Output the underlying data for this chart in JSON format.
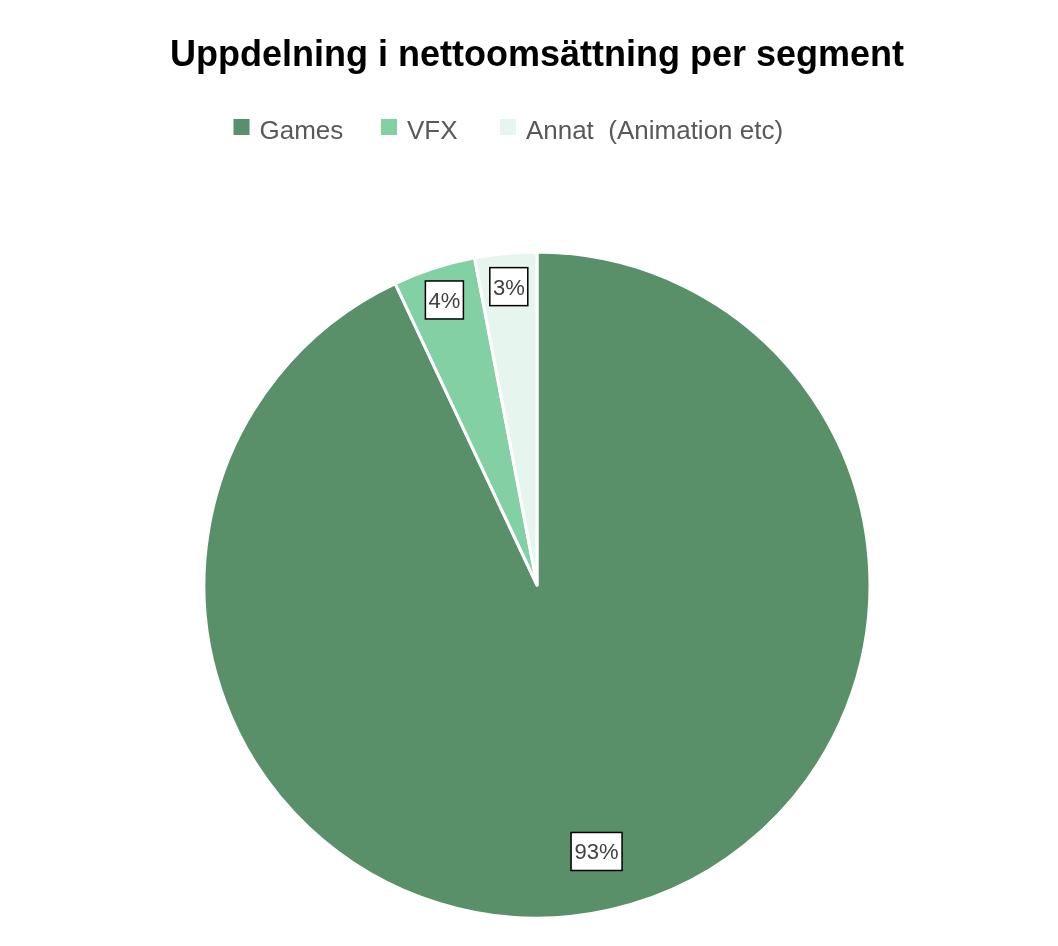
{
  "chart_data": {
    "type": "pie",
    "title": "Uppdelning i nettoomsättning per segment",
    "categories": [
      "Games",
      "VFX",
      "Annat  (Animation etc)"
    ],
    "values": [
      93,
      4,
      3
    ],
    "colors": [
      "#5a9069",
      "#84d0a5",
      "#e6f5ee"
    ],
    "value_labels": [
      "93%",
      "4%",
      "3%"
    ],
    "legend": "top"
  }
}
